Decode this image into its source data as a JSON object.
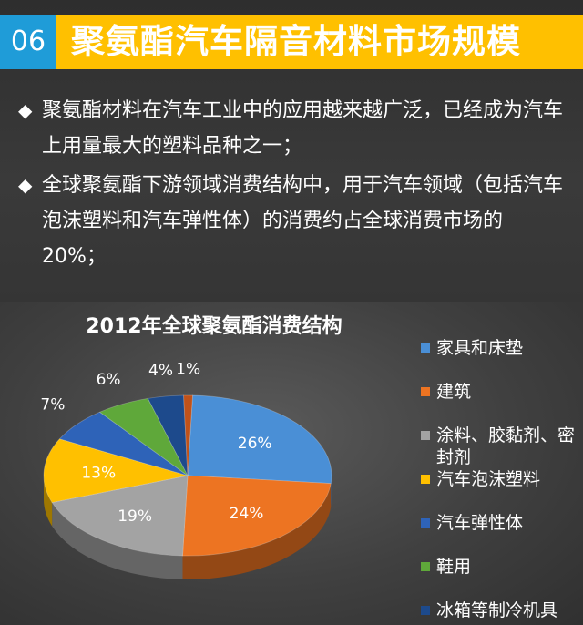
{
  "header": {
    "section_number": "06",
    "title": "聚氨酯汽车隔音材料市场规模"
  },
  "bullets": [
    {
      "marker": "◆",
      "text": "聚氨酯材料在汽车工业中的应用越来越广泛，已经成为汽车上用量最大的塑料品种之一；"
    },
    {
      "marker": "◆",
      "text": "全球聚氨酯下游领域消费结构中，用于汽车领域（包括汽车泡沫塑料和汽车弹性体）的消费约占全球消费市场的20%；"
    }
  ],
  "chart_data": {
    "type": "pie",
    "title": "2012年全球聚氨酯消费结构",
    "unit": "%",
    "legend_position": "right",
    "slices": [
      {
        "label": "家具和床垫",
        "value": 26,
        "display": "26%",
        "color": "#4a8fd6"
      },
      {
        "label": "建筑",
        "value": 24,
        "display": "24%",
        "color": "#ed7422"
      },
      {
        "label": "涂料、胶黏剂、密封剂",
        "value": 19,
        "display": "19%",
        "color": "#a3a3a3"
      },
      {
        "label": "汽车泡沫塑料",
        "value": 13,
        "display": "13%",
        "color": "#ffc000"
      },
      {
        "label": "汽车弹性体",
        "value": 7,
        "display": "7%",
        "color": "#2e63b8"
      },
      {
        "label": "鞋用",
        "value": 6,
        "display": "6%",
        "color": "#5fa83a"
      },
      {
        "label": "冰箱等制冷机具",
        "value": 4,
        "display": "4%",
        "color": "#1d4a8c"
      },
      {
        "label": "",
        "value": 1,
        "display": "1%",
        "color": "#c0521a"
      }
    ]
  }
}
